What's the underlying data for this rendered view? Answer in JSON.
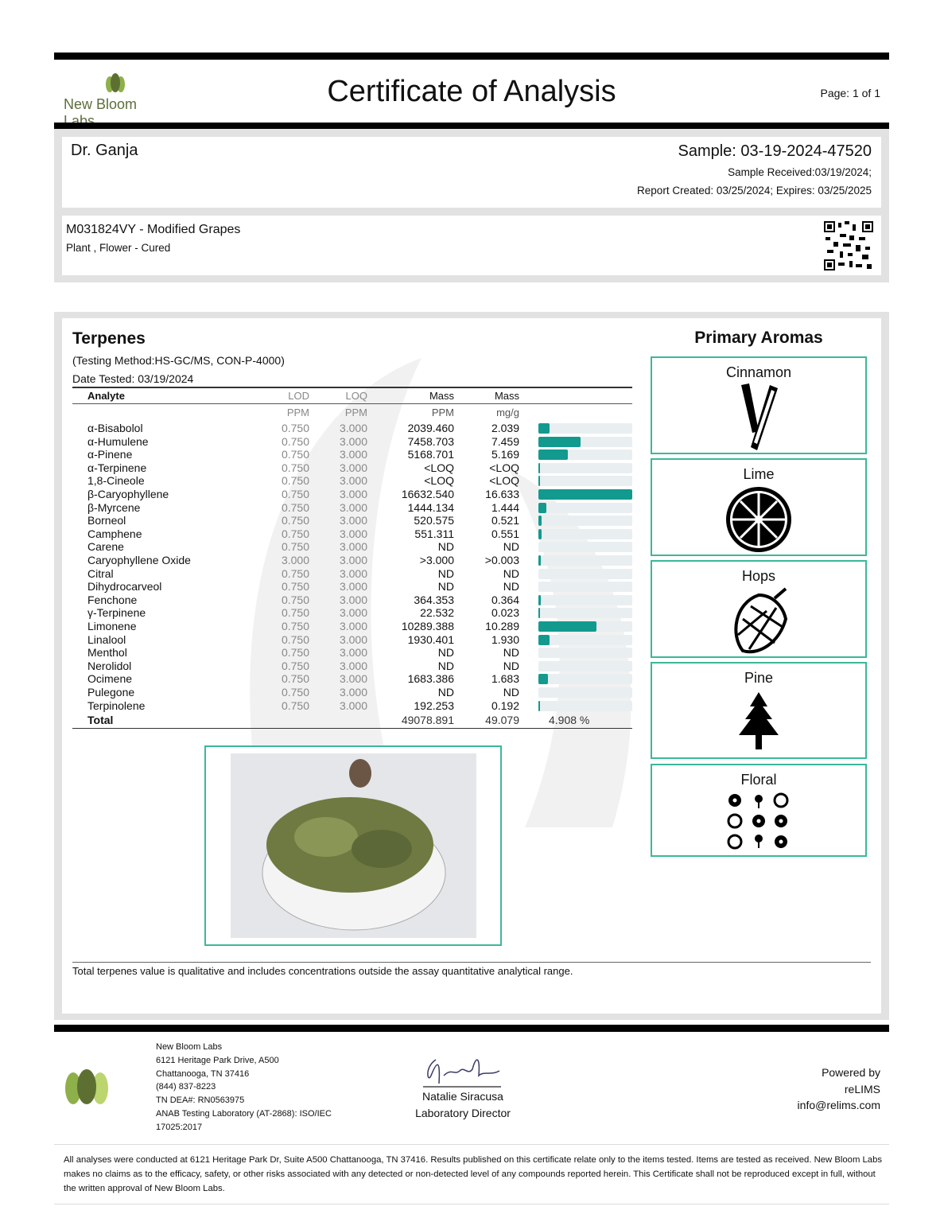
{
  "header": {
    "lab_name": "New Bloom Labs",
    "title": "Certificate of Analysis",
    "page": "Page: 1 of 1"
  },
  "client": {
    "name": "Dr. Ganja",
    "sample": "Sample: 03-19-2024-47520",
    "received": "Sample Received:03/19/2024;",
    "report": "Report Created: 03/25/2024; Expires: 03/25/2025"
  },
  "product": {
    "name": "M031824VY - Modified Grapes",
    "type": "Plant , Flower - Cured"
  },
  "terpenes": {
    "title": "Terpenes",
    "method": "(Testing Method:HS-GC/MS, CON-P-4000)",
    "date": "Date Tested: 03/19/2024",
    "columns": [
      "Analyte",
      "LOD",
      "LOQ",
      "Mass",
      "Mass"
    ],
    "units": [
      "",
      "PPM",
      "PPM",
      "PPM",
      "mg/g"
    ],
    "bar_color": "#139a8f",
    "rows": [
      [
        "α-Bisabolol",
        "0.750",
        "3.000",
        "2039.460",
        "2.039"
      ],
      [
        "α-Humulene",
        "0.750",
        "3.000",
        "7458.703",
        "7.459"
      ],
      [
        "α-Pinene",
        "0.750",
        "3.000",
        "5168.701",
        "5.169"
      ],
      [
        "α-Terpinene",
        "0.750",
        "3.000",
        "<LOQ",
        "<LOQ"
      ],
      [
        "1,8-Cineole",
        "0.750",
        "3.000",
        "<LOQ",
        "<LOQ"
      ],
      [
        "β-Caryophyllene",
        "0.750",
        "3.000",
        "16632.540",
        "16.633"
      ],
      [
        "β-Myrcene",
        "0.750",
        "3.000",
        "1444.134",
        "1.444"
      ],
      [
        "Borneol",
        "0.750",
        "3.000",
        "520.575",
        "0.521"
      ],
      [
        "Camphene",
        "0.750",
        "3.000",
        "551.311",
        "0.551"
      ],
      [
        "Carene",
        "0.750",
        "3.000",
        "ND",
        "ND"
      ],
      [
        "Caryophyllene Oxide",
        "3.000",
        "3.000",
        ">3.000",
        ">0.003"
      ],
      [
        "Citral",
        "0.750",
        "3.000",
        "ND",
        "ND"
      ],
      [
        "Dihydrocarveol",
        "0.750",
        "3.000",
        "ND",
        "ND"
      ],
      [
        "Fenchone",
        "0.750",
        "3.000",
        "364.353",
        "0.364"
      ],
      [
        "γ-Terpinene",
        "0.750",
        "3.000",
        "22.532",
        "0.023"
      ],
      [
        "Limonene",
        "0.750",
        "3.000",
        "10289.388",
        "10.289"
      ],
      [
        "Linalool",
        "0.750",
        "3.000",
        "1930.401",
        "1.930"
      ],
      [
        "Menthol",
        "0.750",
        "3.000",
        "ND",
        "ND"
      ],
      [
        "Nerolidol",
        "0.750",
        "3.000",
        "ND",
        "ND"
      ],
      [
        "Ocimene",
        "0.750",
        "3.000",
        "1683.386",
        "1.683"
      ],
      [
        "Pulegone",
        "0.750",
        "3.000",
        "ND",
        "ND"
      ],
      [
        "Terpinolene",
        "0.750",
        "3.000",
        "192.253",
        "0.192"
      ]
    ],
    "total": {
      "label": "Total",
      "ppm": "49078.891",
      "mg": "49.079",
      "percent": "4.908 %"
    },
    "note": "Total terpenes value is qualitative and includes concentrations outside the assay quantitative analytical range."
  },
  "aromas": {
    "title": "Primary Aromas",
    "items": [
      {
        "label": "Cinnamon",
        "icon": "cinnamon-icon"
      },
      {
        "label": "Lime",
        "icon": "lime-icon"
      },
      {
        "label": "Hops",
        "icon": "hops-icon"
      },
      {
        "label": "Pine",
        "icon": "pine-tree-icon"
      },
      {
        "label": "Floral",
        "icon": "flowers-icon"
      }
    ]
  },
  "footer": {
    "address": [
      "New Bloom Labs",
      "6121 Heritage Park Drive, A500",
      "Chattanooga, TN 37416",
      "(844) 837-8223",
      "TN DEA#: RN0563975",
      "ANAB Testing Laboratory (AT-2868): ISO/IEC",
      "17025:2017"
    ],
    "signer": "Natalie Siracusa",
    "signer_title": "Laboratory Director",
    "powered": [
      "Powered by",
      "reLIMS",
      "info@relims.com"
    ],
    "disclaimer": "All analyses were conducted at 6121 Heritage Park Dr, Suite A500 Chattanooga, TN 37416. Results published on this certificate relate only to the items tested. Items are tested as received. New Bloom Labs makes no claims as to the efficacy, safety, or other risks associated with any detected or non-detected level of any compounds reported herein. This Certificate shall not be reproduced except in full, without the written approval of New Bloom Labs."
  }
}
